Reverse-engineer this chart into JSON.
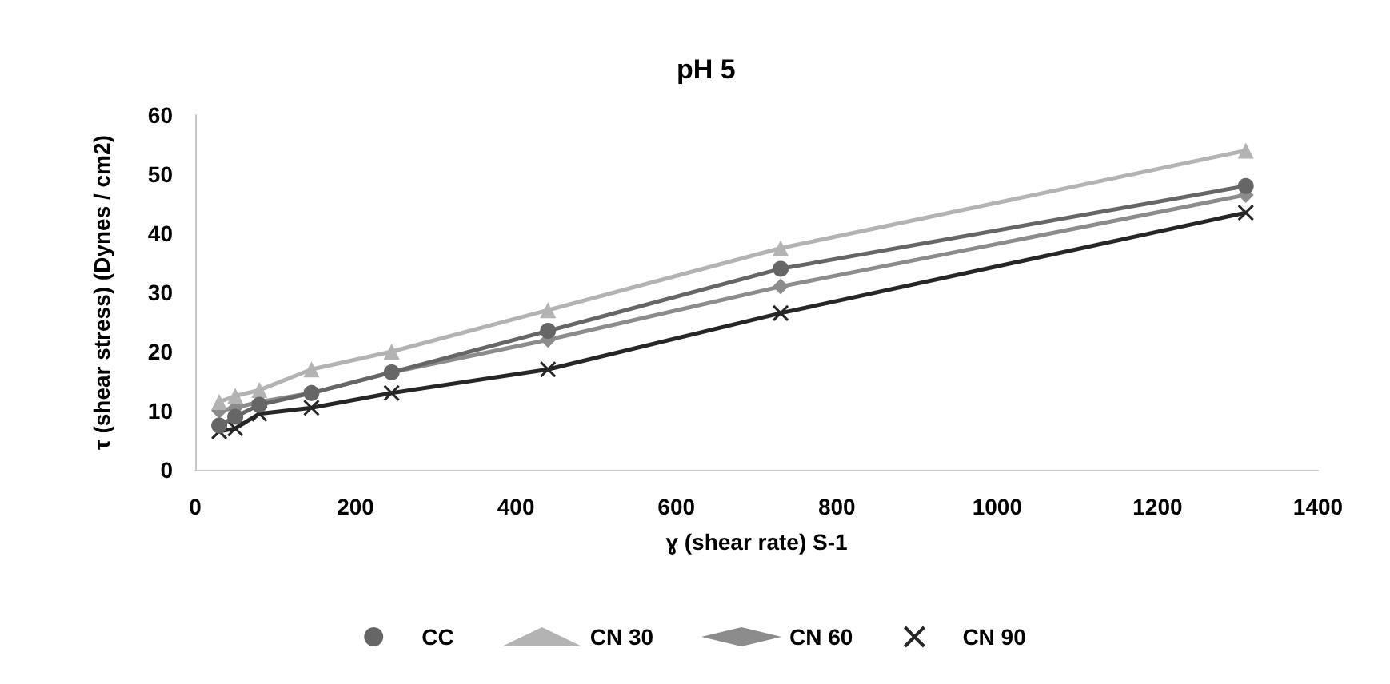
{
  "chart_data": {
    "type": "line",
    "title": "pH 5",
    "xlabel": "ɣ (shear rate) S-1",
    "ylabel": "τ (shear stress) (Dynes / cm2)",
    "x": [
      30,
      50,
      80,
      145,
      245,
      440,
      730,
      1310
    ],
    "series": [
      {
        "name": "CC",
        "color": "#666666",
        "marker": "circle",
        "values": [
          7.5,
          9,
          11,
          13,
          16.5,
          23.5,
          34,
          48
        ]
      },
      {
        "name": "CN 30",
        "color": "#b3b3b3",
        "marker": "triangle",
        "values": [
          11.5,
          12.5,
          13.5,
          17,
          20,
          27,
          37.5,
          54
        ]
      },
      {
        "name": "CN 60",
        "color": "#8c8c8c",
        "marker": "diamond",
        "values": [
          10,
          10.5,
          11.5,
          13,
          16.5,
          22,
          31,
          46.5
        ]
      },
      {
        "name": "CN 90",
        "color": "#262626",
        "marker": "cross",
        "values": [
          6.5,
          7,
          9.5,
          10.5,
          13,
          17,
          26.5,
          43.5
        ]
      }
    ],
    "xlim": [
      0,
      1400
    ],
    "xticks": [
      0,
      200,
      400,
      600,
      800,
      1000,
      1200,
      1400
    ],
    "ylim": [
      0,
      60
    ],
    "yticks": [
      0,
      10,
      20,
      30,
      40,
      50,
      60
    ],
    "grid": false,
    "legend": "bottom",
    "line_style": "solid"
  }
}
